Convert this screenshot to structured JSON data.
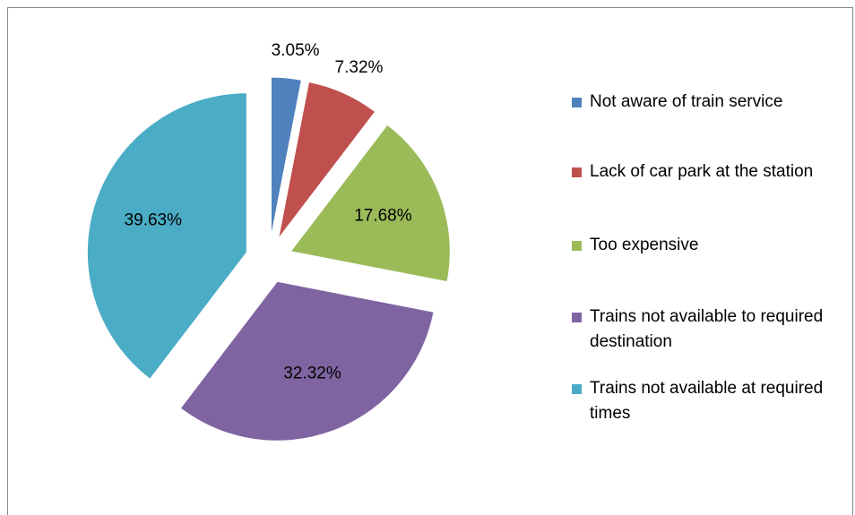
{
  "chart_data": {
    "type": "pie",
    "categories": [
      "Not aware of train service",
      "Lack of car park at the station",
      "Too expensive",
      "Trains not available to required destination",
      "Trains not available at required times"
    ],
    "values": [
      3.05,
      7.32,
      17.68,
      32.32,
      39.63
    ],
    "value_labels": [
      "3.05%",
      "7.32%",
      "17.68%",
      "32.32%",
      "39.63%"
    ],
    "colors": [
      "#4f81bd",
      "#c0504d",
      "#9bbb59",
      "#8064a2",
      "#4bacc6"
    ],
    "legend": "right"
  }
}
